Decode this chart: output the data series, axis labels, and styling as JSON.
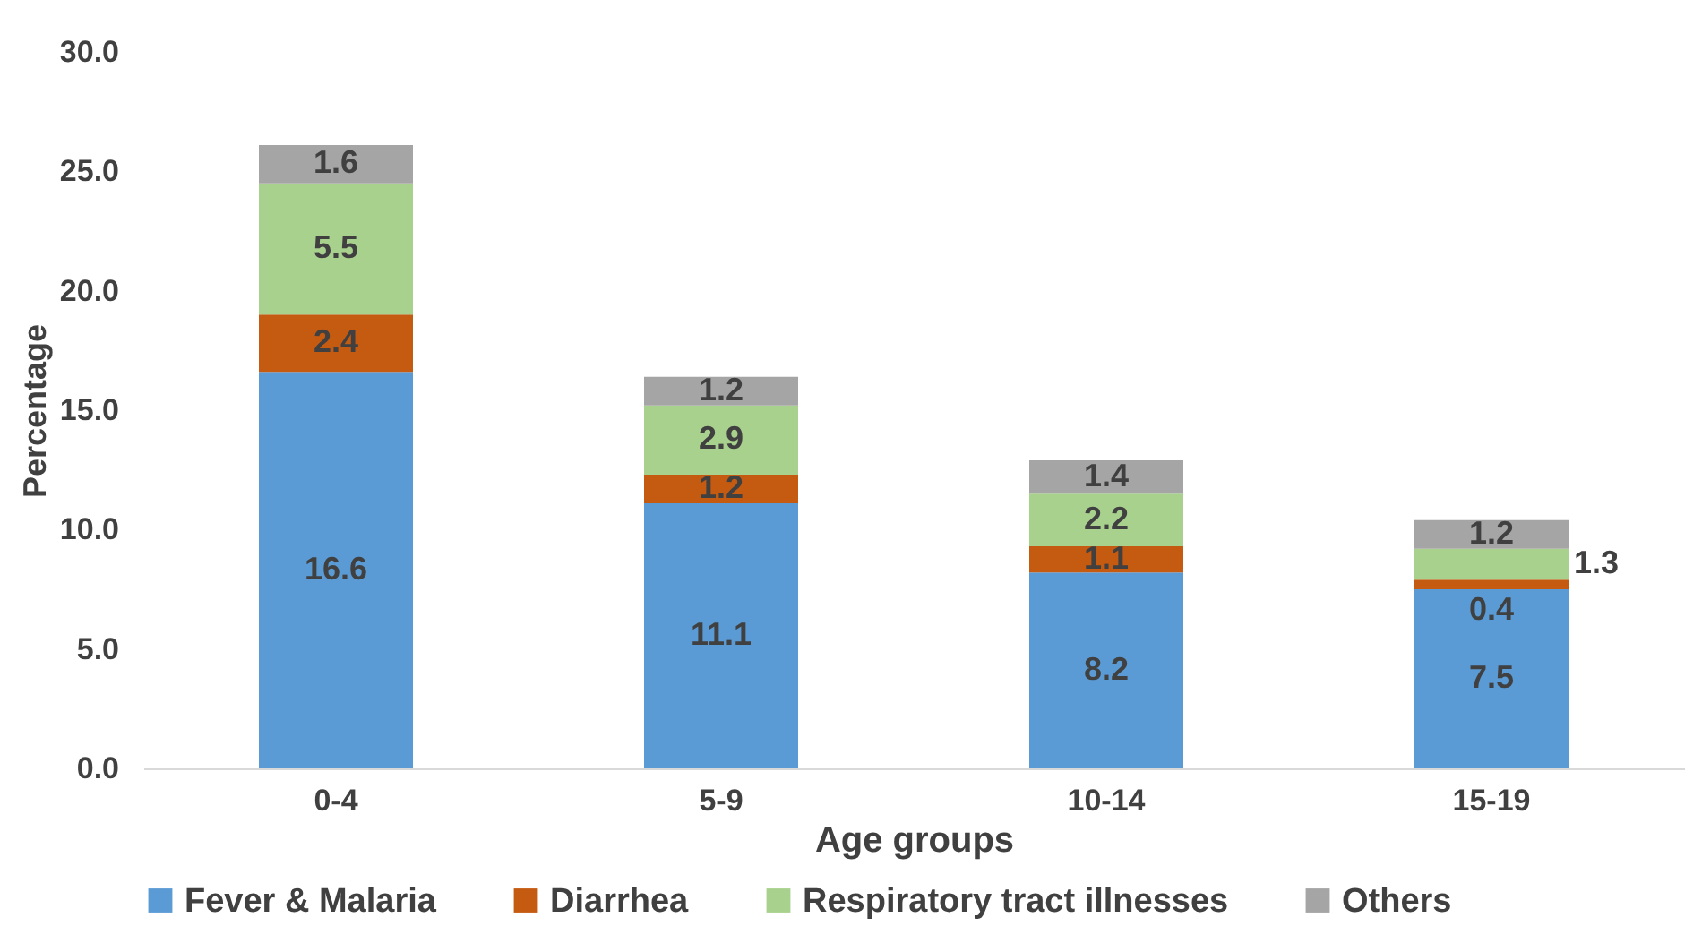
{
  "chart_data": {
    "type": "bar",
    "stacked": true,
    "xlabel": "Age groups",
    "ylabel": "Percentage",
    "categories": [
      "0-4",
      "5-9",
      "10-14",
      "15-19"
    ],
    "series": [
      {
        "name": "Fever & Malaria",
        "color": "#5b9bd5",
        "values": [
          16.6,
          11.1,
          8.2,
          7.5
        ]
      },
      {
        "name": "Diarrhea",
        "color": "#c55a11",
        "values": [
          2.4,
          1.2,
          1.1,
          0.4
        ]
      },
      {
        "name": "Respiratory tract illnesses",
        "color": "#a9d18e",
        "values": [
          5.5,
          2.9,
          2.2,
          1.3
        ]
      },
      {
        "name": "Others",
        "color": "#a5a5a5",
        "values": [
          1.6,
          1.2,
          1.4,
          1.2
        ]
      }
    ],
    "ylim": [
      0,
      30
    ],
    "yticks": [
      {
        "value": 0,
        "label": "0.0"
      },
      {
        "value": 5,
        "label": "5.0"
      },
      {
        "value": 10,
        "label": "10.0"
      },
      {
        "value": 15,
        "label": "15.0"
      },
      {
        "value": 20,
        "label": "20.0"
      },
      {
        "value": 25,
        "label": "25.0"
      },
      {
        "value": 30,
        "label": "30.0"
      }
    ],
    "grid": false,
    "legend": "bottom",
    "data_labels": true
  }
}
